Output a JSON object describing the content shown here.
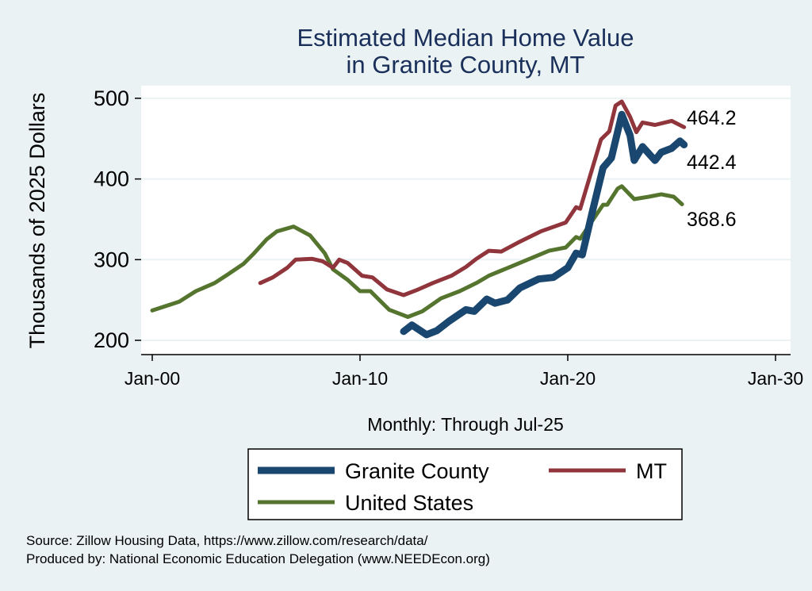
{
  "chart_data": {
    "type": "line",
    "title": [
      "Estimated Median Home Value",
      "in Granite County, MT"
    ],
    "xlabel": "Monthly: Through Jul-25",
    "ylabel": "Thousands of 2025 Dollars",
    "xlim": [
      1999.5,
      2030.5
    ],
    "ylim": [
      192,
      515
    ],
    "x_ticks": [
      {
        "value": 2000,
        "label": "Jan-00"
      },
      {
        "value": 2010,
        "label": "Jan-10"
      },
      {
        "value": 2020,
        "label": "Jan-20"
      },
      {
        "value": 2030,
        "label": "Jan-30"
      }
    ],
    "y_ticks": [
      200,
      300,
      400,
      500
    ],
    "grid": true,
    "legend_placement": "bottom",
    "series": [
      {
        "name": "Granite County",
        "color": "#1a476f",
        "end_label": "442.4",
        "points": [
          [
            2012.1,
            211
          ],
          [
            2012.5,
            219
          ],
          [
            2013.2,
            207
          ],
          [
            2013.7,
            212
          ],
          [
            2014.3,
            224
          ],
          [
            2015.1,
            238
          ],
          [
            2015.5,
            236
          ],
          [
            2016.1,
            251
          ],
          [
            2016.5,
            246
          ],
          [
            2017.1,
            250
          ],
          [
            2017.7,
            265
          ],
          [
            2018.6,
            276
          ],
          [
            2019.3,
            278
          ],
          [
            2020.0,
            290
          ],
          [
            2020.4,
            308
          ],
          [
            2020.7,
            306
          ],
          [
            2021.2,
            361
          ],
          [
            2021.7,
            414
          ],
          [
            2022.1,
            426
          ],
          [
            2022.6,
            480
          ],
          [
            2023.0,
            454
          ],
          [
            2023.2,
            423
          ],
          [
            2023.6,
            440
          ],
          [
            2024.2,
            423
          ],
          [
            2024.5,
            433
          ],
          [
            2025.0,
            438
          ],
          [
            2025.4,
            447
          ],
          [
            2025.6,
            442.4
          ]
        ]
      },
      {
        "name": "MT",
        "color": "#90353b",
        "end_label": "464.2",
        "points": [
          [
            2005.2,
            271
          ],
          [
            2005.8,
            278
          ],
          [
            2006.5,
            290
          ],
          [
            2006.9,
            300
          ],
          [
            2007.7,
            301
          ],
          [
            2008.2,
            298
          ],
          [
            2008.7,
            290
          ],
          [
            2009.0,
            300
          ],
          [
            2009.4,
            296
          ],
          [
            2010.1,
            280
          ],
          [
            2010.6,
            278
          ],
          [
            2011.3,
            263
          ],
          [
            2012.1,
            256
          ],
          [
            2012.8,
            263
          ],
          [
            2013.5,
            271
          ],
          [
            2014.4,
            280
          ],
          [
            2015.1,
            291
          ],
          [
            2015.6,
            301
          ],
          [
            2016.2,
            311
          ],
          [
            2016.8,
            310
          ],
          [
            2017.6,
            321
          ],
          [
            2018.7,
            335
          ],
          [
            2019.9,
            346
          ],
          [
            2020.4,
            365
          ],
          [
            2020.6,
            363
          ],
          [
            2021.6,
            449
          ],
          [
            2022.0,
            459
          ],
          [
            2022.3,
            491
          ],
          [
            2022.6,
            496
          ],
          [
            2023.0,
            477
          ],
          [
            2023.3,
            458
          ],
          [
            2023.6,
            470
          ],
          [
            2024.2,
            467
          ],
          [
            2025.0,
            472
          ],
          [
            2025.6,
            464.2
          ]
        ]
      },
      {
        "name": "United States",
        "color": "#55752f",
        "end_label": "368.6",
        "points": [
          [
            2000.0,
            237
          ],
          [
            2001.3,
            248
          ],
          [
            2002.1,
            261
          ],
          [
            2003.0,
            271
          ],
          [
            2003.6,
            281
          ],
          [
            2004.4,
            295
          ],
          [
            2004.9,
            308
          ],
          [
            2005.5,
            325
          ],
          [
            2006.0,
            335
          ],
          [
            2006.8,
            341
          ],
          [
            2007.6,
            330
          ],
          [
            2008.3,
            308
          ],
          [
            2008.7,
            288
          ],
          [
            2009.4,
            275
          ],
          [
            2010.0,
            261
          ],
          [
            2010.5,
            261
          ],
          [
            2011.4,
            238
          ],
          [
            2012.3,
            229
          ],
          [
            2013.0,
            236
          ],
          [
            2013.9,
            252
          ],
          [
            2014.8,
            261
          ],
          [
            2015.6,
            271
          ],
          [
            2016.2,
            280
          ],
          [
            2017.6,
            295
          ],
          [
            2019.1,
            311
          ],
          [
            2019.9,
            315
          ],
          [
            2020.4,
            328
          ],
          [
            2020.6,
            326
          ],
          [
            2021.7,
            368
          ],
          [
            2021.9,
            368
          ],
          [
            2022.4,
            388
          ],
          [
            2022.6,
            391
          ],
          [
            2023.2,
            375
          ],
          [
            2023.9,
            378
          ],
          [
            2024.5,
            381
          ],
          [
            2025.1,
            378
          ],
          [
            2025.5,
            368.6
          ]
        ]
      }
    ]
  },
  "footer": {
    "source": "Source: Zillow Housing Data, https://www.zillow.com/research/data/",
    "produced_by": "Produced by: National Economic Education Delegation (www.NEEDEcon.org)"
  }
}
